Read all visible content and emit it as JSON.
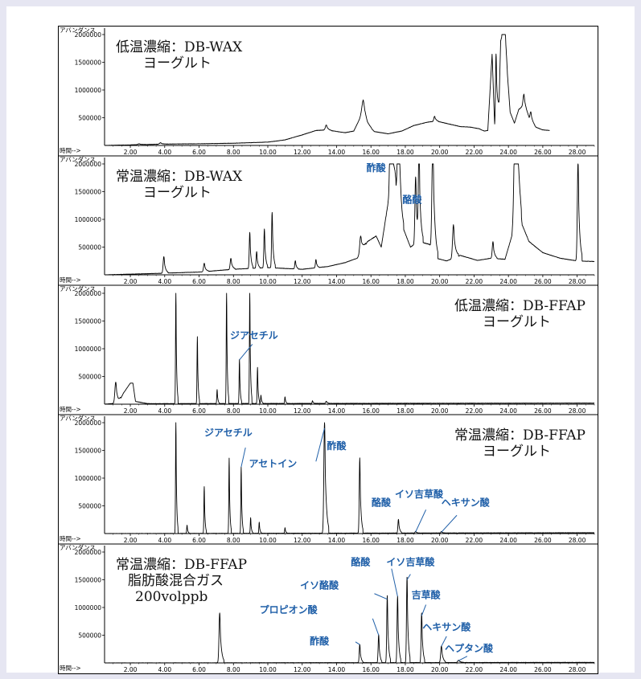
{
  "x_axis": {
    "label": "時間-->",
    "min": 0.5,
    "max": 29.0,
    "ticks": [
      "2.00",
      "4.00",
      "6.00",
      "8.00",
      "10.00",
      "12.00",
      "14.00",
      "16.00",
      "18.00",
      "20.00",
      "22.00",
      "24.00",
      "26.00",
      "28.00"
    ],
    "tick_values": [
      2,
      4,
      6,
      8,
      10,
      12,
      14,
      16,
      18,
      20,
      22,
      24,
      26,
      28
    ]
  },
  "y_axis": {
    "label": "アバンダンス",
    "max": 2000000,
    "ticks": [
      "500000",
      "1000000",
      "1500000",
      "2000000"
    ],
    "tick_values": [
      500000,
      1000000,
      1500000,
      2000000
    ]
  },
  "chart_data": [
    {
      "type": "line",
      "title_lines": [
        "低温濃縮：DB-WAX",
        "ヨーグルト"
      ],
      "title_align": "left",
      "xlim": [
        0.5,
        29.0
      ],
      "ylim": [
        0,
        2000000
      ],
      "x_end": 26.4,
      "baseline": [
        [
          0.5,
          0
        ],
        [
          2.0,
          10000
        ],
        [
          4.0,
          25000
        ],
        [
          6.0,
          30000
        ],
        [
          8.0,
          40000
        ],
        [
          10.0,
          60000
        ],
        [
          11.0,
          100000
        ],
        [
          12.0,
          190000
        ],
        [
          12.8,
          270000
        ],
        [
          13.4,
          280000
        ],
        [
          14.5,
          230000
        ],
        [
          15.0,
          260000
        ],
        [
          15.3,
          450000
        ],
        [
          15.55,
          620000
        ],
        [
          15.8,
          380000
        ],
        [
          16.2,
          250000
        ],
        [
          17.0,
          210000
        ],
        [
          17.8,
          260000
        ],
        [
          18.5,
          360000
        ],
        [
          19.3,
          420000
        ],
        [
          19.8,
          440000
        ],
        [
          20.5,
          390000
        ],
        [
          21.2,
          340000
        ],
        [
          21.8,
          330000
        ],
        [
          22.3,
          300000
        ],
        [
          22.6,
          260000
        ],
        [
          22.8,
          270000
        ],
        [
          23.05,
          1650000
        ],
        [
          23.2,
          350000
        ],
        [
          23.45,
          700000
        ],
        [
          23.55,
          1900000
        ],
        [
          23.8,
          2000000
        ],
        [
          23.95,
          1250000
        ],
        [
          24.1,
          600000
        ],
        [
          24.35,
          400000
        ],
        [
          24.6,
          650000
        ],
        [
          24.9,
          720000
        ],
        [
          25.2,
          500000
        ],
        [
          25.6,
          330000
        ],
        [
          26.0,
          280000
        ],
        [
          26.4,
          270000
        ]
      ],
      "peaks": [
        [
          2.5,
          15000,
          0.06
        ],
        [
          3.75,
          25000,
          0.05
        ],
        [
          13.4,
          90000,
          0.05
        ],
        [
          15.55,
          200000,
          0.08
        ],
        [
          19.7,
          90000,
          0.04
        ],
        [
          23.28,
          1200000,
          0.03
        ],
        [
          23.7,
          500000,
          0.04
        ],
        [
          24.9,
          200000,
          0.05
        ],
        [
          25.3,
          150000,
          0.04
        ]
      ],
      "labels": []
    },
    {
      "type": "line",
      "title_lines": [
        "常温濃縮：DB-WAX",
        "ヨーグルト"
      ],
      "title_align": "left",
      "xlim": [
        0.5,
        29.0
      ],
      "ylim": [
        0,
        2000000
      ],
      "baseline": [
        [
          0.5,
          0
        ],
        [
          3.0,
          20000
        ],
        [
          6.0,
          50000
        ],
        [
          8.0,
          100000
        ],
        [
          10.0,
          130000
        ],
        [
          12.0,
          100000
        ],
        [
          13.5,
          150000
        ],
        [
          14.5,
          220000
        ],
        [
          15.2,
          300000
        ],
        [
          15.8,
          600000
        ],
        [
          16.3,
          700000
        ],
        [
          16.6,
          500000
        ],
        [
          17.0,
          1300000
        ],
        [
          17.4,
          1700000
        ],
        [
          17.8,
          900000
        ],
        [
          18.3,
          500000
        ],
        [
          18.8,
          600000
        ],
        [
          19.4,
          550000
        ],
        [
          19.8,
          300000
        ],
        [
          20.4,
          250000
        ],
        [
          21.2,
          350000
        ],
        [
          22.2,
          260000
        ],
        [
          23.0,
          300000
        ],
        [
          23.8,
          280000
        ],
        [
          24.2,
          700000
        ],
        [
          24.5,
          1800000
        ],
        [
          24.8,
          900000
        ],
        [
          25.2,
          600000
        ],
        [
          26.0,
          400000
        ],
        [
          27.0,
          300000
        ],
        [
          28.0,
          250000
        ],
        [
          29.0,
          240000
        ]
      ],
      "peaks": [
        [
          3.95,
          300000,
          0.04
        ],
        [
          6.3,
          150000,
          0.04
        ],
        [
          7.85,
          200000,
          0.04
        ],
        [
          8.95,
          650000,
          0.03
        ],
        [
          9.35,
          300000,
          0.03
        ],
        [
          9.8,
          700000,
          0.03
        ],
        [
          10.25,
          1000000,
          0.03
        ],
        [
          11.6,
          150000,
          0.03
        ],
        [
          12.8,
          150000,
          0.03
        ],
        [
          15.4,
          300000,
          0.05
        ],
        [
          17.15,
          2000000,
          0.05
        ],
        [
          17.6,
          2000000,
          0.05
        ],
        [
          18.6,
          1200000,
          0.04
        ],
        [
          18.8,
          1600000,
          0.04
        ],
        [
          19.6,
          2000000,
          0.05
        ],
        [
          20.8,
          600000,
          0.05
        ],
        [
          23.1,
          300000,
          0.04
        ],
        [
          24.4,
          2000000,
          0.06
        ],
        [
          28.05,
          1800000,
          0.04
        ]
      ],
      "labels": [
        {
          "text": "酢酸",
          "x": 16.3,
          "y": 1870000
        },
        {
          "text": "酪酸",
          "x": 18.4,
          "y": 1300000
        }
      ]
    },
    {
      "type": "line",
      "title_lines": [
        "低温濃縮：DB-FFAP",
        "ヨーグルト"
      ],
      "title_align": "right",
      "xlim": [
        0.5,
        29.0
      ],
      "ylim": [
        0,
        2000000
      ],
      "baseline": [
        [
          0.5,
          0
        ],
        [
          1.3,
          20000
        ],
        [
          1.6,
          200000
        ],
        [
          2.0,
          380000
        ],
        [
          2.15,
          380000
        ],
        [
          2.3,
          50000
        ],
        [
          3.0,
          10000
        ],
        [
          29.0,
          20000
        ]
      ],
      "peaks": [
        [
          1.15,
          380000,
          0.05
        ],
        [
          4.65,
          2000000,
          0.02
        ],
        [
          5.9,
          1200000,
          0.02
        ],
        [
          7.05,
          250000,
          0.02
        ],
        [
          7.6,
          2000000,
          0.02
        ],
        [
          8.35,
          800000,
          0.02
        ],
        [
          8.95,
          2000000,
          0.02
        ],
        [
          9.4,
          650000,
          0.02
        ],
        [
          9.6,
          150000,
          0.02
        ],
        [
          11.0,
          120000,
          0.02
        ],
        [
          12.6,
          50000,
          0.02
        ],
        [
          13.4,
          40000,
          0.03
        ]
      ],
      "labels": [
        {
          "text": "ジアセチル",
          "x": 9.2,
          "y": 1180000
        }
      ],
      "label_lines": [
        [
          [
            8.35,
            800000
          ],
          [
            9.1,
            1080000
          ]
        ]
      ]
    },
    {
      "type": "line",
      "title_lines": [
        "常温濃縮：DB-FFAP",
        "ヨーグルト"
      ],
      "title_align": "right",
      "xlim": [
        0.5,
        29.0
      ],
      "ylim": [
        0,
        2000000
      ],
      "baseline": [
        [
          0.5,
          0
        ],
        [
          29.0,
          15000
        ]
      ],
      "peaks": [
        [
          4.65,
          2000000,
          0.02
        ],
        [
          5.3,
          150000,
          0.02
        ],
        [
          6.3,
          850000,
          0.02
        ],
        [
          7.75,
          1350000,
          0.02
        ],
        [
          8.45,
          1200000,
          0.02
        ],
        [
          9.0,
          280000,
          0.02
        ],
        [
          9.5,
          200000,
          0.02
        ],
        [
          11.0,
          100000,
          0.02
        ],
        [
          13.3,
          2000000,
          0.04
        ],
        [
          15.35,
          1350000,
          0.03
        ],
        [
          17.6,
          250000,
          0.03
        ],
        [
          18.6,
          30000,
          0.03
        ],
        [
          20.1,
          25000,
          0.03
        ]
      ],
      "labels": [
        {
          "text": "ジアセチル",
          "x": 7.7,
          "y": 1760000
        },
        {
          "text": "アセトイン",
          "x": 10.3,
          "y": 1200000
        },
        {
          "text": "酢酸",
          "x": 14.0,
          "y": 1520000
        },
        {
          "text": "酪酸",
          "x": 16.6,
          "y": 500000
        },
        {
          "text": "イソ吉草酸",
          "x": 18.8,
          "y": 650000
        },
        {
          "text": "ヘキサン酸",
          "x": 21.5,
          "y": 500000
        }
      ],
      "label_lines": [
        [
          [
            8.45,
            1200000
          ],
          [
            8.7,
            1550000
          ]
        ],
        [
          [
            12.8,
            1300000
          ],
          [
            13.3,
            1900000
          ]
        ],
        [
          [
            18.6,
            30000
          ],
          [
            19.2,
            430000
          ]
        ],
        [
          [
            20.1,
            25000
          ],
          [
            21.0,
            330000
          ]
        ]
      ]
    },
    {
      "type": "line",
      "title_lines": [
        "常温濃縮：DB-FFAP",
        "脂肪酸混合ガス",
        "200volppb"
      ],
      "title_align": "left",
      "xlim": [
        0.5,
        29.0
      ],
      "ylim": [
        0,
        2000000
      ],
      "baseline": [
        [
          0.5,
          0
        ],
        [
          29.0,
          10000
        ]
      ],
      "peaks": [
        [
          7.2,
          900000,
          0.04
        ],
        [
          15.35,
          330000,
          0.03
        ],
        [
          16.45,
          500000,
          0.03
        ],
        [
          16.95,
          1200000,
          0.03
        ],
        [
          17.55,
          1200000,
          0.03
        ],
        [
          18.1,
          1550000,
          0.03
        ],
        [
          18.95,
          900000,
          0.03
        ],
        [
          20.1,
          300000,
          0.04
        ],
        [
          21.1,
          40000,
          0.05
        ]
      ],
      "labels": [
        {
          "text": "酢酸",
          "x": 13.0,
          "y": 330000
        },
        {
          "text": "プロピオン酸",
          "x": 11.2,
          "y": 900000
        },
        {
          "text": "イソ酪酸",
          "x": 13.0,
          "y": 1340000
        },
        {
          "text": "酪酸",
          "x": 15.4,
          "y": 1760000
        },
        {
          "text": "イソ吉草酸",
          "x": 18.3,
          "y": 1760000
        },
        {
          "text": "吉草酸",
          "x": 19.2,
          "y": 1170000
        },
        {
          "text": "ヘキサン酸",
          "x": 20.4,
          "y": 590000
        },
        {
          "text": "ヘプタン酸",
          "x": 21.7,
          "y": 200000
        }
      ],
      "label_lines": [
        [
          [
            15.1,
            380000
          ],
          [
            15.35,
            330000
          ]
        ],
        [
          [
            16.1,
            800000
          ],
          [
            16.45,
            500000
          ]
        ],
        [
          [
            16.2,
            1250000
          ],
          [
            16.95,
            1150000
          ]
        ],
        [
          [
            17.2,
            1700000
          ],
          [
            17.55,
            1200000
          ]
        ],
        [
          [
            18.3,
            1600000
          ],
          [
            18.1,
            1500000
          ]
        ],
        [
          [
            19.2,
            1050000
          ],
          [
            18.95,
            850000
          ]
        ],
        [
          [
            20.4,
            480000
          ],
          [
            20.1,
            300000
          ]
        ],
        [
          [
            21.6,
            120000
          ],
          [
            21.1,
            40000
          ]
        ]
      ]
    }
  ]
}
